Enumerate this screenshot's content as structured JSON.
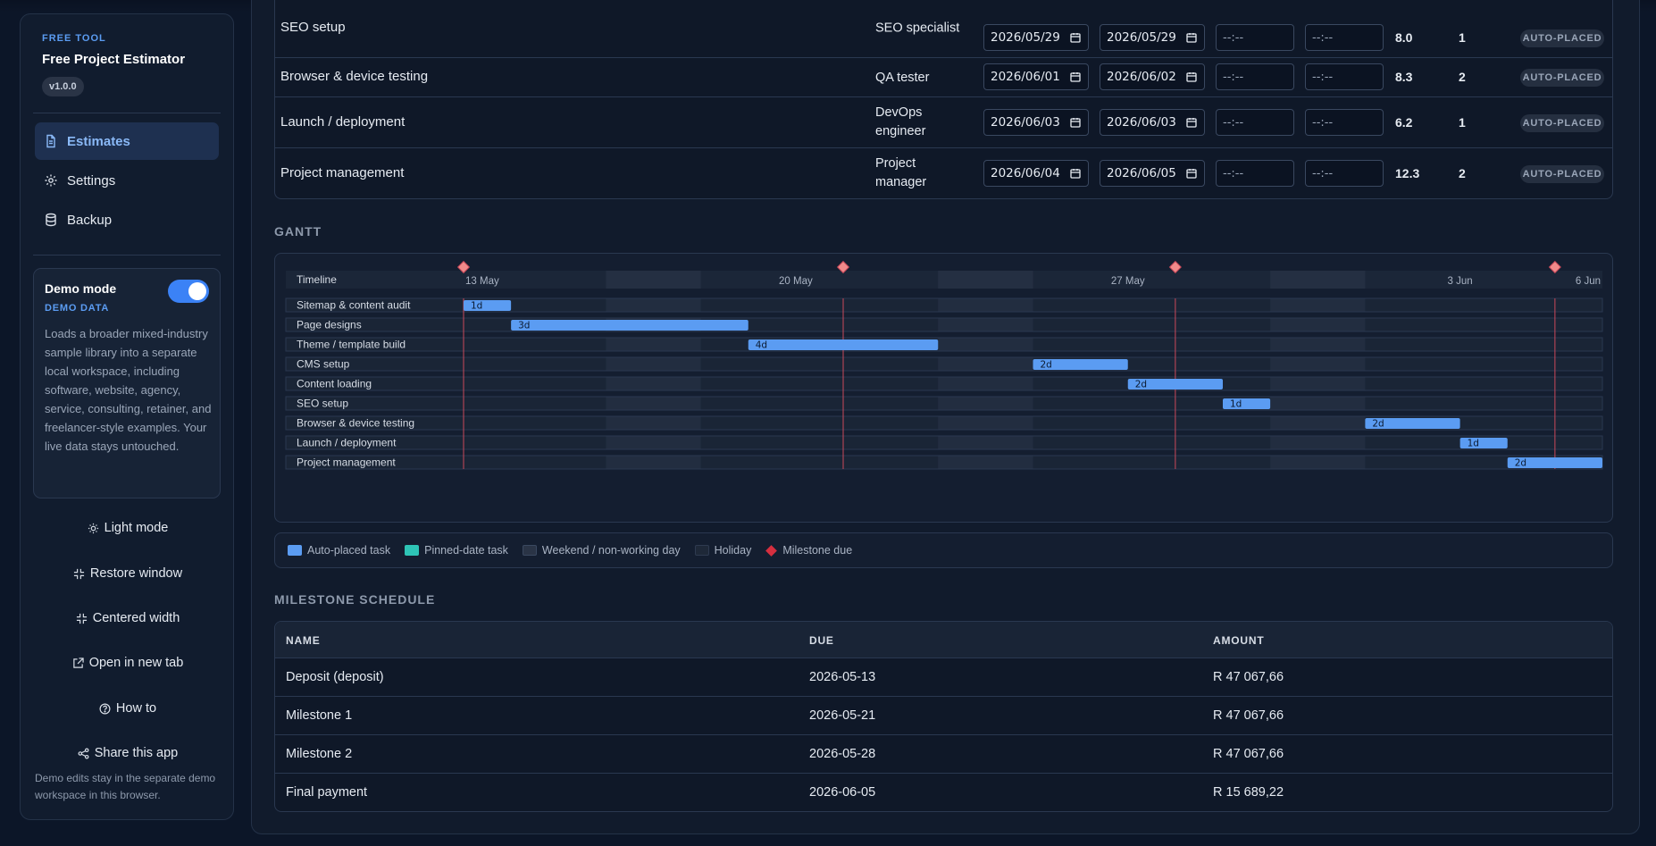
{
  "app": {
    "eyebrow": "FREE TOOL",
    "title": "Free Project Estimator",
    "version": "v1.0.0"
  },
  "nav": [
    {
      "label": "Estimates",
      "icon": "document-icon",
      "active": true
    },
    {
      "label": "Settings",
      "icon": "gear-icon",
      "active": false
    },
    {
      "label": "Backup",
      "icon": "database-icon",
      "active": false
    }
  ],
  "demo": {
    "title": "Demo mode",
    "subtitle": "DEMO DATA",
    "enabled": true,
    "description": "Loads a broader mixed-industry sample library into a separate local workspace, including software, website, agency, service, consulting, retainer, and freelancer-style examples. Your live data stays untouched."
  },
  "actions": [
    {
      "label": "Light mode",
      "icon": "sun-icon"
    },
    {
      "label": "Restore window",
      "icon": "restore-icon"
    },
    {
      "label": "Centered width",
      "icon": "centered-width-icon"
    },
    {
      "label": "Open in new tab",
      "icon": "external-link-icon"
    },
    {
      "label": "How to",
      "icon": "help-circle-icon"
    },
    {
      "label": "Share this app",
      "icon": "share-icon"
    }
  ],
  "footer_note": "Demo edits stay in the separate demo workspace in this browser.",
  "tasks": [
    {
      "name": "SEO setup",
      "role": "SEO specialist",
      "start": "2026/05/29",
      "end": "2026/05/29",
      "start_time": "--:--",
      "end_time": "--:--",
      "hours": "8.0",
      "days": "1",
      "status": "AUTO-PLACED"
    },
    {
      "name": "Browser & device testing",
      "role": "QA tester",
      "start": "2026/06/01",
      "end": "2026/06/02",
      "start_time": "--:--",
      "end_time": "--:--",
      "hours": "8.3",
      "days": "2",
      "status": "AUTO-PLACED"
    },
    {
      "name": "Launch / deployment",
      "role": "DevOps engineer",
      "start": "2026/06/03",
      "end": "2026/06/03",
      "start_time": "--:--",
      "end_time": "--:--",
      "hours": "6.2",
      "days": "1",
      "status": "AUTO-PLACED"
    },
    {
      "name": "Project management",
      "role": "Project manager",
      "start": "2026/06/04",
      "end": "2026/06/05",
      "start_time": "--:--",
      "end_time": "--:--",
      "hours": "12.3",
      "days": "2",
      "status": "AUTO-PLACED"
    }
  ],
  "gantt": {
    "section_title": "GANTT",
    "timeline_label": "Timeline",
    "first_day": "2026-05-13",
    "day_count": 24,
    "date_ticks": [
      {
        "label": "13 May",
        "day": 0
      },
      {
        "label": "20 May",
        "day": 7
      },
      {
        "label": "27 May",
        "day": 14
      },
      {
        "label": "3 Jun",
        "day": 21
      },
      {
        "label": "6 Jun",
        "day": 24
      }
    ],
    "weekends": [
      [
        3,
        5
      ],
      [
        10,
        12
      ],
      [
        17,
        19
      ]
    ],
    "milestone_days": [
      0,
      8,
      15,
      23
    ],
    "rows": [
      {
        "name": "Sitemap & content audit",
        "start_day": 0,
        "end_day": 1,
        "label": "1d"
      },
      {
        "name": "Page designs",
        "start_day": 1,
        "end_day": 6,
        "label": "3d"
      },
      {
        "name": "Theme / template build",
        "start_day": 6,
        "end_day": 10,
        "label": "4d"
      },
      {
        "name": "CMS setup",
        "start_day": 12,
        "end_day": 14,
        "label": "2d"
      },
      {
        "name": "Content loading",
        "start_day": 14,
        "end_day": 16,
        "label": "2d"
      },
      {
        "name": "SEO setup",
        "start_day": 16,
        "end_day": 17,
        "label": "1d"
      },
      {
        "name": "Browser & device testing",
        "start_day": 19,
        "end_day": 21,
        "label": "2d"
      },
      {
        "name": "Launch / deployment",
        "start_day": 21,
        "end_day": 22,
        "label": "1d"
      },
      {
        "name": "Project management",
        "start_day": 22,
        "end_day": 24,
        "label": "2d"
      }
    ],
    "colors": {
      "auto": "#5b9cf2",
      "pinned": "#2ec4b6",
      "milestone": "#f08a8a",
      "milestone_line": "#c9495a"
    }
  },
  "legend": [
    {
      "label": "Auto-placed task",
      "color": "#5b9cf2"
    },
    {
      "label": "Pinned-date task",
      "color": "#2ec4b6"
    },
    {
      "label": "Weekend / non-working day",
      "color": "#2a3446"
    },
    {
      "label": "Holiday",
      "color": "#1e2838"
    },
    {
      "label": "Milestone due",
      "color": "#d62f3f"
    }
  ],
  "milestones": {
    "section_title": "MILESTONE SCHEDULE",
    "headers": {
      "name": "NAME",
      "due": "DUE",
      "amount": "AMOUNT"
    },
    "rows": [
      {
        "name": "Deposit (deposit)",
        "due": "2026-05-13",
        "amount": "R 47 067,66"
      },
      {
        "name": "Milestone 1",
        "due": "2026-05-21",
        "amount": "R 47 067,66"
      },
      {
        "name": "Milestone 2",
        "due": "2026-05-28",
        "amount": "R 47 067,66"
      },
      {
        "name": "Final payment",
        "due": "2026-06-05",
        "amount": "R 15 689,22"
      }
    ]
  }
}
